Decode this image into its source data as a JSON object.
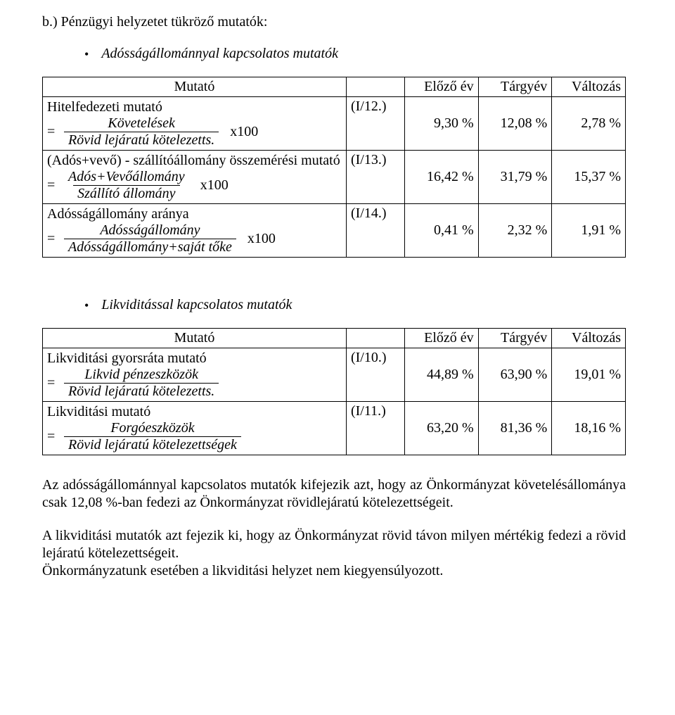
{
  "section_title": "b.) Pénzügyi helyzetet tükröző mutatók:",
  "bullets": {
    "b1": "Adósságállománnyal kapcsolatos mutatók",
    "b2": "Likviditással kapcsolatos mutatók"
  },
  "table_header": {
    "mutato": "Mutató",
    "prev": "Előző év",
    "curr": "Tárgyév",
    "chg": "Változás"
  },
  "table1": {
    "row1": {
      "title": "Hitelfedezeti mutató",
      "frac_top": "Követelések",
      "frac_bot": "Rövid lejáratú kötelezetts.",
      "mult": "x100",
      "code": "(I/12.)",
      "prev": "9,30 %",
      "curr": "12,08 %",
      "chg": "2,78 %"
    },
    "row2": {
      "title": "(Adós+vevő) - szállítóállomány összemérési mutató",
      "frac_top": "Adós+Vevőállomány",
      "frac_bot": "Szállító állomány",
      "mult": "x100",
      "code": "(I/13.)",
      "prev": "16,42 %",
      "curr": "31,79 %",
      "chg": "15,37 %"
    },
    "row3": {
      "title": "Adósságállomány aránya",
      "frac_top": "Adósságállomány",
      "frac_bot": "Adósságállomány+saját tőke",
      "mult": "x100",
      "code": "(I/14.)",
      "prev": "0,41 %",
      "curr": "2,32 %",
      "chg": "1,91 %"
    }
  },
  "table2": {
    "row1": {
      "title": "Likviditási gyorsráta mutató",
      "frac_top": "Likvid pénzeszközök",
      "frac_bot": "Rövid lejáratú kötelezetts.",
      "code": "(I/10.)",
      "prev": "44,89 %",
      "curr": "63,90 %",
      "chg": "19,01 %"
    },
    "row2": {
      "title": "Likviditási mutató",
      "frac_top": "Forgóeszközök",
      "frac_bot": "Rövid lejáratú kötelezettségek",
      "code": "(I/11.)",
      "prev": "63,20 %",
      "curr": "81,36 %",
      "chg": "18,16 %"
    }
  },
  "paragraphs": {
    "p1": "Az adósságállománnyal kapcsolatos mutatók kifejezik azt, hogy az Önkormányzat követelésállománya csak 12,08 %-ban fedezi az Önkormányzat rövidlejáratú kötelezettségeit.",
    "p2": "A likviditási mutatók azt fejezik ki, hogy az Önkormányzat rövid távon milyen mértékig fedezi a rövid lejáratú kötelezettségeit.",
    "p3": "Önkormányzatunk esetében a likviditási helyzet nem kiegyensúlyozott."
  },
  "eq_sign": "="
}
